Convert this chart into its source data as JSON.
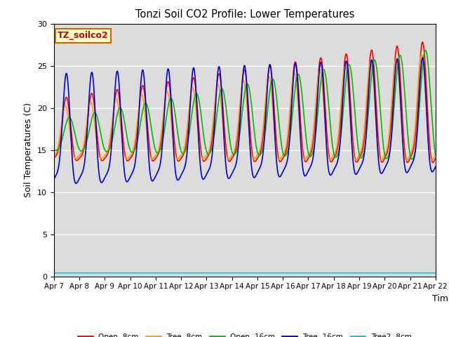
{
  "title": "Tonzi Soil CO2 Profile: Lower Temperatures",
  "xlabel": "Time",
  "ylabel": "Soil Temperatures (C)",
  "ylim": [
    0,
    30
  ],
  "background_color": "#dcdcdc",
  "grid_color": "white",
  "label_box_text": "TZ_soilco2",
  "label_box_facecolor": "#ffffcc",
  "label_box_edgecolor": "#cc6600",
  "label_box_textcolor": "#cc0000",
  "xtick_labels": [
    "Apr 7",
    "Apr 8",
    "Apr 9",
    "Apr 10",
    "Apr 11",
    "Apr 12",
    "Apr 13",
    "Apr 14",
    "Apr 15",
    "Apr 16",
    "Apr 17",
    "Apr 18",
    "Apr 19",
    "Apr 20",
    "Apr 21",
    "Apr 22"
  ],
  "legend_labels": [
    "Open -8cm",
    "Tree -8cm",
    "Open -16cm",
    "Tree -16cm",
    "Tree2 -8cm"
  ],
  "legend_colors": [
    "#ff0000",
    "#ff9900",
    "#00bb00",
    "#0000dd",
    "#00cccc"
  ],
  "n_points": 1500,
  "days": 15,
  "cyan_value": 0.4,
  "yticks": [
    0,
    5,
    10,
    15,
    20,
    25,
    30
  ]
}
